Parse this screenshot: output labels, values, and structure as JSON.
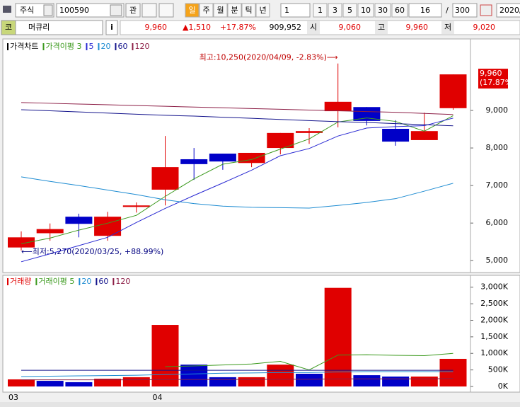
{
  "toolbar": {
    "market": "주식",
    "code": "100590",
    "watch": "관",
    "periods": [
      "일",
      "주",
      "월",
      "분",
      "틱",
      "년"
    ],
    "period_count": "1",
    "intervals": [
      "1",
      "3",
      "5",
      "10",
      "30",
      "60"
    ],
    "shown": "16",
    "separator": "/",
    "total": "300",
    "date": "2020/"
  },
  "quote": {
    "code_tag": "코",
    "name": "머큐리",
    "info": "i",
    "price": "9,960",
    "change": "▲1,510",
    "rate": "+17.87%",
    "volume": "909,952",
    "open_label": "시",
    "open": "9,060",
    "high_label": "고",
    "high": "9,960",
    "low_label": "저",
    "low": "9,020"
  },
  "chart_data": [
    {
      "type": "candlestick",
      "name": "가격차트",
      "open": [
        5350,
        5730,
        6170,
        5660,
        6430,
        6890,
        7700,
        7850,
        7600,
        8000,
        8400,
        8980,
        9090,
        8510,
        8210,
        9060
      ],
      "high": [
        5780,
        5990,
        6250,
        6300,
        6550,
        8320,
        8000,
        7850,
        7870,
        8400,
        8530,
        10250,
        9090,
        8740,
        8940,
        9960
      ],
      "low": [
        5270,
        5530,
        5620,
        5530,
        6280,
        6470,
        7150,
        7420,
        7490,
        7830,
        8110,
        8550,
        8600,
        8060,
        8210,
        9020
      ],
      "close": [
        5620,
        5840,
        5980,
        6170,
        6470,
        7490,
        7570,
        7640,
        7870,
        8400,
        8450,
        9230,
        8720,
        8170,
        8450,
        9960
      ],
      "up_color": "#e00000",
      "down_color": "#0000c8",
      "series": [
        {
          "name": "가격이평 3",
          "color": "#3c9a1e",
          "values": [
            5450,
            5600,
            5813,
            5997,
            6207,
            6710,
            7177,
            7567,
            7693,
            7970,
            8240,
            8693,
            8800,
            8707,
            8447,
            8860
          ]
        },
        {
          "name": "5",
          "color": "#2828d2",
          "values": [
            4970,
            5180,
            5400,
            5620,
            6016,
            6390,
            6736,
            7068,
            7408,
            7794,
            7986,
            8318,
            8532,
            8570,
            8594,
            8796
          ]
        },
        {
          "name": "20",
          "color": "#1e8cd2",
          "values": [
            7230,
            7110,
            7000,
            6880,
            6760,
            6620,
            6520,
            6450,
            6420,
            6410,
            6400,
            6470,
            6550,
            6650,
            6850,
            7060
          ]
        },
        {
          "name": "60",
          "color": "#14148c",
          "values": [
            9020,
            8990,
            8960,
            8930,
            8900,
            8870,
            8850,
            8820,
            8790,
            8760,
            8730,
            8700,
            8680,
            8650,
            8620,
            8590
          ]
        },
        {
          "name": "120",
          "color": "#8c1e46",
          "values": [
            9210,
            9190,
            9170,
            9150,
            9130,
            9110,
            9090,
            9070,
            9050,
            9030,
            9010,
            8990,
            8970,
            8950,
            8920,
            8890
          ]
        }
      ],
      "ylim": [
        4740,
        10810
      ],
      "yticks": [
        {
          "value": 5000,
          "label": "5,000"
        },
        {
          "value": 6000,
          "label": "6,000"
        },
        {
          "value": 7000,
          "label": "7,000"
        },
        {
          "value": 8000,
          "label": "8,000"
        },
        {
          "value": 9000,
          "label": "9,000"
        }
      ],
      "annotations": {
        "high": "최고:10,250(2020/04/09, -2.83%)⟶",
        "low": "⟵최저:5,270(2020/03/25, +88.99%)"
      },
      "last_price_label": "9,960",
      "last_change_label": "(17.87%)"
    },
    {
      "type": "bar",
      "name": "거래량",
      "color": "#e00000",
      "categories": [
        "03",
        null,
        null,
        null,
        null,
        "04",
        null,
        null,
        null,
        null,
        null,
        null,
        null,
        null,
        null,
        null
      ],
      "values": [
        214,
        170,
        130,
        235,
        280,
        1860,
        660,
        280,
        280,
        660,
        385,
        2980,
        340,
        300,
        300,
        835
      ],
      "colors": [
        "#e00000",
        "#0000c8",
        "#0000c8",
        "#e00000",
        "#e00000",
        "#e00000",
        "#0000c8",
        "#0000c8",
        "#e00000",
        "#e00000",
        "#0000c8",
        "#e00000",
        "#0000c8",
        "#0000c8",
        "#e00000",
        "#e00000"
      ],
      "series": [
        {
          "name": "거래이평 5",
          "color": "#3c9a1e",
          "values": [
            null,
            null,
            null,
            null,
            null,
            600,
            620,
            650,
            680,
            760,
            500,
            950,
            960,
            940,
            930,
            1000
          ]
        },
        {
          "name": "20",
          "color": "#1e8cd2",
          "values": [
            300,
            310,
            320,
            330,
            340,
            360,
            380,
            400,
            410,
            420,
            420,
            440,
            450,
            450,
            450,
            450
          ]
        },
        {
          "name": "60",
          "color": "#14148c",
          "values": [
            490,
            490,
            490,
            490,
            490,
            490,
            490,
            490,
            490,
            490,
            490,
            490,
            490,
            490,
            490,
            490
          ]
        },
        {
          "name": "120",
          "color": "#8c1e46",
          "values": [
            200,
            200,
            200,
            200,
            200,
            210,
            210,
            210,
            210,
            220,
            220,
            230,
            230,
            230,
            230,
            240
          ]
        }
      ],
      "ylim": [
        0,
        3080
      ],
      "yticks": [
        {
          "value": 0,
          "label": "0K"
        },
        {
          "value": 500,
          "label": "500K"
        },
        {
          "value": 1000,
          "label": "1,000K"
        },
        {
          "value": 1500,
          "label": "1,500K"
        },
        {
          "value": 2000,
          "label": "2,000K"
        },
        {
          "value": 2500,
          "label": "2,500K"
        },
        {
          "value": 3000,
          "label": "3,000K"
        }
      ]
    }
  ]
}
